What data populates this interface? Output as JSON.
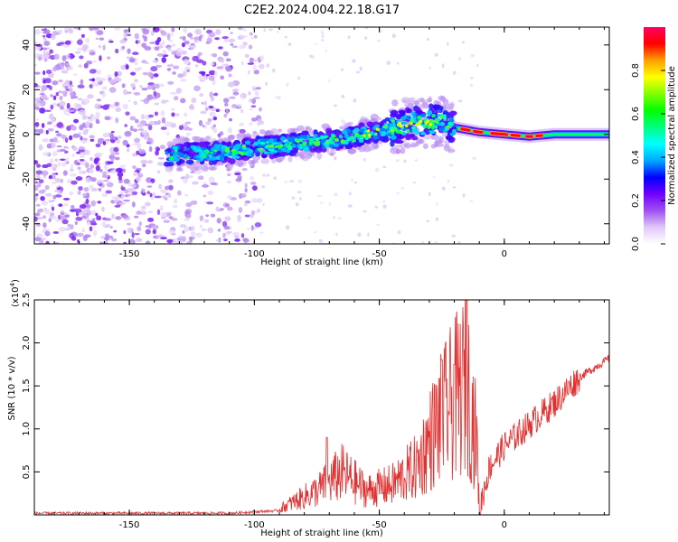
{
  "title": "C2E2.2024.004.22.18.G17",
  "chart_data": [
    {
      "type": "heatmap",
      "xlabel": "Height of straight line (km)",
      "ylabel": "Frequency (Hz)",
      "xlim": [
        -188,
        42
      ],
      "ylim": [
        -49,
        48
      ],
      "xticks": [
        -150,
        -100,
        -50,
        0
      ],
      "yticks": [
        -40,
        -20,
        0,
        20,
        40
      ],
      "colorbar": {
        "label": "Normalized spectral amplitude",
        "range": [
          0,
          1
        ],
        "ticks": [
          "0.0",
          "0.2",
          "0.4",
          "0.6",
          "0.8"
        ],
        "colormap": [
          "#ffffff",
          "#e0c8f8",
          "#a050f0",
          "#7000ff",
          "#0000ff",
          "#00aaff",
          "#00ffff",
          "#00ff80",
          "#00ff00",
          "#80ff00",
          "#ffff00",
          "#ffa000",
          "#ff0000",
          "#ff0060"
        ]
      },
      "features": {
        "noise_region_x": [
          -188,
          -105
        ],
        "signal_track": [
          {
            "x": -135,
            "y": -9
          },
          {
            "x": -110,
            "y": -8
          },
          {
            "x": -100,
            "y": -6
          },
          {
            "x": -80,
            "y": -4
          },
          {
            "x": -60,
            "y": -1
          },
          {
            "x": -40,
            "y": 4
          },
          {
            "x": -25,
            "y": 6
          },
          {
            "x": -20,
            "y": 3
          },
          {
            "x": -10,
            "y": 1
          },
          {
            "x": 0,
            "y": 0
          },
          {
            "x": 10,
            "y": -1
          },
          {
            "x": 20,
            "y": 0
          },
          {
            "x": 42,
            "y": 0
          }
        ]
      }
    },
    {
      "type": "line",
      "xlabel": "Height of straight line (km)",
      "ylabel": "SNR (10 * v/v)",
      "yscale_label": "(x10",
      "yscale_exp": "4",
      "yscale_close": ")",
      "xlim": [
        -188,
        42
      ],
      "ylim": [
        0,
        2.5
      ],
      "xticks": [
        -150,
        -100,
        -50,
        0
      ],
      "yticks": [
        "0.5",
        "1.0",
        "1.5",
        "2.0",
        "2.5"
      ],
      "series": [
        {
          "color": "#e03030",
          "profile": [
            {
              "x": -188,
              "y": 0.02
            },
            {
              "x": -110,
              "y": 0.02
            },
            {
              "x": -90,
              "y": 0.05
            },
            {
              "x": -75,
              "y": 0.2
            },
            {
              "x": -65,
              "y": 0.35
            },
            {
              "x": -55,
              "y": 0.2
            },
            {
              "x": -45,
              "y": 0.25
            },
            {
              "x": -35,
              "y": 0.4
            },
            {
              "x": -28,
              "y": 0.7
            },
            {
              "x": -22,
              "y": 0.9
            },
            {
              "x": -15,
              "y": 1.1
            },
            {
              "x": -11,
              "y": 0.6
            },
            {
              "x": -10,
              "y": 0.05
            },
            {
              "x": -6,
              "y": 0.55
            },
            {
              "x": 0,
              "y": 0.8
            },
            {
              "x": 10,
              "y": 1.05
            },
            {
              "x": 20,
              "y": 1.3
            },
            {
              "x": 30,
              "y": 1.6
            },
            {
              "x": 42,
              "y": 1.82
            }
          ]
        }
      ]
    }
  ]
}
